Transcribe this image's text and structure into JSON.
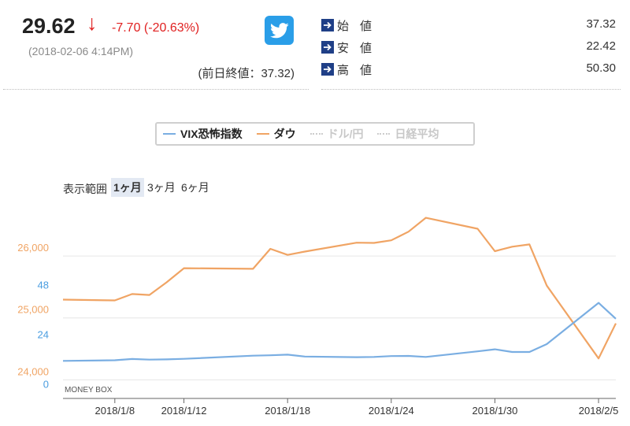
{
  "quote": {
    "price": "29.62",
    "arrow": "↓",
    "change": "-7.70 (-20.63%)",
    "timestamp": "(2018-02-06 4:14PM)",
    "prev_close": "(前日終値：37.32)"
  },
  "stats": [
    {
      "label": "始値",
      "value": "37.32"
    },
    {
      "label": "安値",
      "value": "22.42"
    },
    {
      "label": "高値",
      "value": "50.30"
    }
  ],
  "legend": [
    {
      "label": "VIX恐怖指数",
      "color": "#7aaee2",
      "active": true
    },
    {
      "label": "ダウ",
      "color": "#f0a464",
      "active": true
    },
    {
      "label": "ドル/円",
      "color": "#cccccc",
      "active": false
    },
    {
      "label": "日経平均",
      "color": "#cccccc",
      "active": false
    }
  ],
  "range": {
    "label": "表示範囲",
    "options": [
      "1ヶ月",
      "3ヶ月",
      "6ヶ月"
    ],
    "selected": "1ヶ月"
  },
  "icons": {
    "twitter": "twitter-bird-icon",
    "stat": "arrow-right-icon"
  },
  "chart_data": {
    "type": "line",
    "watermark": "MONEY BOX",
    "x_ticks": [
      "2018/1/8",
      "2018/1/12",
      "2018/1/18",
      "2018/1/24",
      "2018/1/30",
      "2018/2/5"
    ],
    "left_axis_dow": {
      "ticks": [
        "24,000",
        "25,000",
        "26,000"
      ],
      "tick_values": [
        24000,
        25000,
        26000
      ],
      "range": [
        23700,
        26700
      ],
      "color": "#f0a464"
    },
    "left_axis_vix": {
      "ticks": [
        "0",
        "24",
        "48"
      ],
      "tick_values": [
        0,
        24,
        48
      ],
      "range": [
        -9,
        81
      ],
      "color": "#4a9de0"
    },
    "grid": true,
    "series": [
      {
        "name": "ダウ",
        "color": "#f0a464",
        "x": [
          "2018-01-05",
          "2018-01-08",
          "2018-01-09",
          "2018-01-10",
          "2018-01-11",
          "2018-01-12",
          "2018-01-16",
          "2018-01-17",
          "2018-01-18",
          "2018-01-19",
          "2018-01-22",
          "2018-01-23",
          "2018-01-24",
          "2018-01-25",
          "2018-01-26",
          "2018-01-29",
          "2018-01-30",
          "2018-01-31",
          "2018-02-01",
          "2018-02-02",
          "2018-02-05",
          "2018-02-06"
        ],
        "values": [
          25295,
          25283,
          25385,
          25370,
          25575,
          25803,
          25792,
          26115,
          26017,
          26071,
          26214,
          26210,
          26252,
          26392,
          26616,
          26439,
          26077,
          26149,
          26186,
          25521,
          24346,
          24912
        ]
      },
      {
        "name": "VIX恐怖指数",
        "color": "#7aaee2",
        "x": [
          "2018-01-05",
          "2018-01-08",
          "2018-01-09",
          "2018-01-10",
          "2018-01-11",
          "2018-01-12",
          "2018-01-16",
          "2018-01-17",
          "2018-01-18",
          "2018-01-19",
          "2018-01-22",
          "2018-01-23",
          "2018-01-24",
          "2018-01-25",
          "2018-01-26",
          "2018-01-29",
          "2018-01-30",
          "2018-01-31",
          "2018-02-01",
          "2018-02-02",
          "2018-02-05",
          "2018-02-06"
        ],
        "values": [
          9.2,
          9.5,
          10.1,
          9.8,
          9.9,
          10.2,
          11.7,
          11.9,
          12.2,
          11.3,
          11.0,
          11.1,
          11.5,
          11.6,
          11.1,
          13.8,
          14.8,
          13.5,
          13.5,
          17.3,
          37.3,
          29.6
        ]
      }
    ]
  }
}
